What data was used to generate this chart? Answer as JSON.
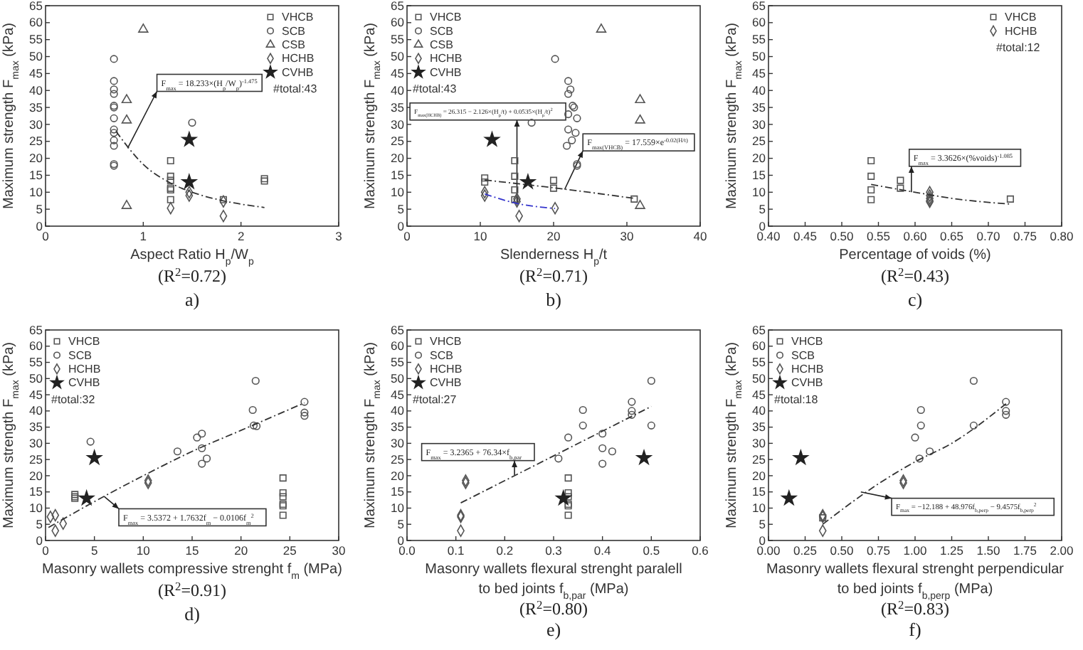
{
  "chart_data": [
    {
      "type": "scatter",
      "xlabel": "Aspect Ratio H$_{p}$/W$_{p}$",
      "ylabel": "Maximum strength F$_{max}$ (kPa)",
      "xlim": [
        0,
        3
      ],
      "xticks": [
        0,
        1,
        2,
        3
      ],
      "ylim": [
        0,
        65
      ],
      "yticks": [
        0,
        5,
        10,
        15,
        20,
        25,
        30,
        35,
        40,
        45,
        50,
        55,
        60,
        65
      ],
      "legend": "top right",
      "series": [
        {
          "name": "VHCB",
          "color": "#555555",
          "marker": "square",
          "x": [
            1.28,
            1.28,
            1.28,
            1.28,
            1.28,
            1.28,
            1.82,
            2.24,
            2.24
          ],
          "values": [
            19.3,
            14.7,
            13.5,
            11.2,
            10.7,
            7.8,
            7.8,
            14,
            13.3
          ]
        },
        {
          "name": "SCB",
          "color": "#555555",
          "marker": "circle",
          "x": [
            0.7,
            0.7,
            0.7,
            0.7,
            0.7,
            0.7,
            0.7,
            0.7,
            0.7,
            0.7,
            0.7,
            0.7,
            0.7,
            1.5
          ],
          "values": [
            49.3,
            42.8,
            40.3,
            39,
            35.5,
            35,
            31.8,
            28.5,
            27.5,
            25.3,
            23.7,
            18.3,
            17.8,
            30.5
          ]
        },
        {
          "name": "CSB",
          "color": "#555555",
          "marker": "triangle",
          "x": [
            1,
            0.83,
            0.83,
            0.83
          ],
          "values": [
            58,
            37.2,
            31.2,
            6
          ]
        },
        {
          "name": "HCHB",
          "color": "#555555",
          "marker": "diamond",
          "x": [
            1.28,
            1.47,
            1.47,
            1.82,
            1.82
          ],
          "values": [
            5.3,
            9,
            10,
            7.3,
            3
          ]
        },
        {
          "name": "CVHB",
          "color": "#222222",
          "marker": "star",
          "x": [
            1.47,
            1.47
          ],
          "values": [
            25.5,
            13
          ]
        },
        {
          "type": "line",
          "color": "#333333",
          "marker": "none",
          "line_style": "dashed",
          "x": [
            0.72,
            1,
            1.28,
            1.5,
            1.8,
            2.24
          ],
          "values": [
            28,
            18.2,
            12.7,
            10,
            7.6,
            5.5
          ]
        }
      ],
      "annotations": [
        {
          "text": "F$_{max}$ = 18.233×(H$_{p}$/W$_{p}$)$^{-1.475}$",
          "x": 0.84,
          "y": 23
        },
        "#total:43",
        "(R$^{2}$=0.72)",
        "a)"
      ]
    },
    {
      "type": "scatter",
      "xlabel": "Slenderness H$_{p}$/t",
      "ylabel": "Maximum strength F$_{max}$ (kPa)",
      "xlim": [
        0,
        40
      ],
      "xticks": [
        0,
        10,
        20,
        30,
        40
      ],
      "ylim": [
        0,
        65
      ],
      "yticks": [
        0,
        5,
        10,
        15,
        20,
        25,
        30,
        35,
        40,
        45,
        50,
        55,
        60,
        65
      ],
      "legend": "top left",
      "series": [
        {
          "name": "VHCB",
          "color": "#555555",
          "marker": "square",
          "x": [
            10.6,
            10.6,
            14.7,
            14.7,
            14.7,
            14.7,
            20,
            20,
            31
          ],
          "values": [
            13,
            14.2,
            19.3,
            14.7,
            10.7,
            7.8,
            13.5,
            11.2,
            8
          ]
        },
        {
          "name": "SCB",
          "color": "#555555",
          "marker": "circle",
          "x": [
            20.2,
            22,
            22.3,
            22,
            22.6,
            22.8,
            22,
            23.2,
            22,
            23,
            22.5,
            21.8,
            23.2,
            23.2,
            17
          ],
          "values": [
            49.3,
            42.8,
            40.3,
            39,
            35.5,
            35,
            33,
            31.8,
            28.5,
            27.5,
            25.3,
            23.7,
            18.3,
            17.8,
            30.5
          ]
        },
        {
          "name": "CSB",
          "color": "#555555",
          "marker": "triangle",
          "x": [
            26.5,
            31.8,
            31.8,
            31.8
          ],
          "values": [
            58,
            37.2,
            31.2,
            6
          ]
        },
        {
          "name": "HCHB",
          "color": "#555555",
          "marker": "diamond",
          "x": [
            10.6,
            10.6,
            15,
            15,
            15.3,
            20.2
          ],
          "values": [
            10,
            9,
            8,
            7.3,
            3,
            5.3
          ]
        },
        {
          "name": "CVHB",
          "color": "#222222",
          "marker": "star",
          "x": [
            11.6,
            16.5
          ],
          "values": [
            25.5,
            13
          ]
        },
        {
          "type": "line",
          "color": "#333333",
          "marker": "none",
          "line_style": "dashed",
          "x": [
            10.6,
            20,
            31
          ],
          "values": [
            13.6,
            11.3,
            8.2
          ]
        },
        {
          "type": "line",
          "color": "#3333cc",
          "marker": "none",
          "line_style": "dashed",
          "x": [
            10.6,
            15,
            20.2
          ],
          "values": [
            9.5,
            6.7,
            5.2
          ]
        }
      ],
      "annotations": [
        {
          "text": "F$_{max(HCHB)}$ = 26.315 − 2.126×(H$_{p}$/t) + 0.0535×(H$_{p}$/t)$^{2}$",
          "x": 15,
          "y": 6.7
        },
        {
          "text": "F$_{max(VHCB)}$ = 17.559×e$^{-0.02(H/t)}$",
          "x": 21.5,
          "y": 10.8
        },
        "#total:43",
        "(R$^{2}$=0.71)",
        "b)"
      ]
    },
    {
      "type": "scatter",
      "xlabel": "Percentage of voids (%)",
      "ylabel": "Maximum strength F$_{max}$ (kPa)",
      "xlim": [
        0.4,
        0.8
      ],
      "xticks": [
        {
          "value": 0.4,
          "label": "0.40"
        },
        0.45,
        {
          "value": 0.5,
          "label": "0.50"
        },
        0.55,
        {
          "value": 0.6,
          "label": "0.60"
        },
        0.65,
        {
          "value": 0.7,
          "label": "0.70"
        },
        0.75,
        {
          "value": 0.8,
          "label": "0.80"
        }
      ],
      "ylim": [
        0,
        65
      ],
      "yticks": [
        0,
        5,
        10,
        15,
        20,
        25,
        30,
        35,
        40,
        45,
        50,
        55,
        60,
        65
      ],
      "legend": "top right",
      "series": [
        {
          "name": "VHCB",
          "color": "#555555",
          "marker": "square",
          "x": [
            0.54,
            0.54,
            0.54,
            0.54,
            0.58,
            0.58,
            0.73
          ],
          "values": [
            19.3,
            14.7,
            10.7,
            7.8,
            13.5,
            11.2,
            8
          ]
        },
        {
          "name": "HCHB",
          "color": "#555555",
          "marker": "diamond",
          "x": [
            0.62,
            0.62,
            0.62,
            0.62,
            0.62
          ],
          "values": [
            10,
            9,
            8.2,
            7.5,
            7.2
          ]
        },
        {
          "type": "line",
          "color": "#333333",
          "marker": "none",
          "line_style": "dashed",
          "x": [
            0.54,
            0.6,
            0.65,
            0.73
          ],
          "values": [
            12.3,
            10,
            8.2,
            6.5
          ]
        }
      ],
      "annotations": [
        {
          "text": "F$_{max}$ = 3.3626×(%voids)$^{-1.085}$",
          "x": 0.595,
          "y": 10
        },
        "#total:12",
        "(R$^{2}$=0.43)",
        "c)"
      ]
    },
    {
      "type": "scatter",
      "xlabel": "Masonry wallets compressive strenght f$_{m}$ (MPa)",
      "ylabel": "Maximum strength F$_{max}$ (kPa)",
      "xlim": [
        0,
        30
      ],
      "xticks": [
        0,
        5,
        10,
        15,
        20,
        25,
        30
      ],
      "ylim": [
        0,
        65
      ],
      "yticks": [
        0,
        5,
        10,
        15,
        20,
        25,
        30,
        35,
        40,
        45,
        50,
        55,
        60,
        65
      ],
      "legend": "top left",
      "series": [
        {
          "name": "VHCB",
          "color": "#555555",
          "marker": "square",
          "x": [
            24.3,
            24.3,
            24.3,
            24.3,
            24.3,
            24.3,
            3,
            3,
            3
          ],
          "values": [
            19.3,
            14.7,
            13.5,
            11.2,
            10.7,
            7.8,
            14.2,
            13.5,
            13
          ]
        },
        {
          "name": "SCB",
          "color": "#555555",
          "marker": "circle",
          "x": [
            21.5,
            26.5,
            21.2,
            26.5,
            26.5,
            21.3,
            21.6,
            16,
            15.5,
            13.5,
            16,
            16.5,
            16,
            4.6
          ],
          "values": [
            49.3,
            42.8,
            40.3,
            39.5,
            38.5,
            35.5,
            35.3,
            33,
            31.8,
            27.5,
            28.5,
            25.3,
            23.7,
            30.5
          ]
        },
        {
          "name": "HCHB",
          "color": "#555555",
          "marker": "diamond",
          "x": [
            10.5,
            10.5,
            1,
            0.5,
            1.8,
            1
          ],
          "values": [
            18.5,
            17.8,
            7.8,
            7.3,
            5.2,
            3
          ]
        },
        {
          "name": "CVHB",
          "color": "#222222",
          "marker": "star",
          "x": [
            5,
            4.2
          ],
          "values": [
            25.5,
            13
          ]
        },
        {
          "type": "line",
          "color": "#333333",
          "marker": "none",
          "line_style": "dashed",
          "x": [
            0.3,
            5,
            10,
            15,
            20,
            26.5
          ],
          "values": [
            4,
            12,
            20,
            27.5,
            34,
            42.5
          ]
        }
      ],
      "annotations": [
        {
          "text": "F$_{max}$ = 3.5372 + 1.7632f$_{m}$ − 0.0106f$_{m}$$^{2}$",
          "x": 6,
          "y": 13.6
        },
        "#total:32",
        "(R$^{2}$=0.91)",
        "d)"
      ]
    },
    {
      "type": "scatter",
      "xlabel": "Masonry wallets flexural strenght paralell\nto bed joints f$_{b,par}$  (MPa)",
      "ylabel": "Maximum strength F$_{max}$ (kPa)",
      "xlim": [
        0,
        0.6
      ],
      "xticks": [
        {
          "value": 0,
          "label": "0.0"
        },
        0.1,
        0.2,
        0.3,
        0.4,
        0.5,
        0.6
      ],
      "ylim": [
        0,
        65
      ],
      "yticks": [
        0,
        5,
        10,
        15,
        20,
        25,
        30,
        35,
        40,
        45,
        50,
        55,
        60,
        65
      ],
      "legend": "top left",
      "series": [
        {
          "name": "VHCB",
          "color": "#555555",
          "marker": "square",
          "x": [
            0.33,
            0.33,
            0.33,
            0.33,
            0.33,
            0.33
          ],
          "values": [
            19.3,
            14.7,
            13.5,
            11.2,
            10.7,
            7.8
          ]
        },
        {
          "name": "SCB",
          "color": "#555555",
          "marker": "circle",
          "x": [
            0.5,
            0.46,
            0.36,
            0.46,
            0.46,
            0.36,
            0.5,
            0.4,
            0.33,
            0.4,
            0.42,
            0.31,
            0.4
          ],
          "values": [
            49.3,
            42.8,
            40.3,
            40,
            38.8,
            35.5,
            35.5,
            33,
            31.8,
            28.5,
            27.5,
            25.3,
            23.7
          ]
        },
        {
          "name": "HCHB",
          "color": "#555555",
          "marker": "diamond",
          "x": [
            0.12,
            0.12,
            0.11,
            0.11,
            0.11
          ],
          "values": [
            18.5,
            17.8,
            7.8,
            7.3,
            3
          ]
        },
        {
          "name": "CVHB",
          "color": "#222222",
          "marker": "star",
          "x": [
            0.32,
            0.485
          ],
          "values": [
            13,
            25.5
          ]
        },
        {
          "type": "line",
          "color": "#333333",
          "marker": "none",
          "line_style": "dashed",
          "x": [
            0.11,
            0.5
          ],
          "values": [
            11.6,
            41.4
          ]
        }
      ],
      "annotations": [
        {
          "text": "F$_{max}$ = 3.2365 + 76.34×f$_{b,par}$",
          "x": 0.22,
          "y": 20.2
        },
        "#total:27",
        "(R$^{2}$=0.80)",
        "e)"
      ]
    },
    {
      "type": "scatter",
      "xlabel": "Masonry wallets flexural strenght perpendicular\nto bed joints f$_{b,perp}$  (MPa)",
      "ylabel": "Maximum strength F$_{max}$ (kPa)",
      "xlim": [
        0,
        2
      ],
      "xticks": [
        {
          "value": 0,
          "label": "0.00"
        },
        0.25,
        {
          "value": 0.5,
          "label": "0.50"
        },
        0.75,
        {
          "value": 1,
          "label": "1.00"
        },
        1.25,
        {
          "value": 1.5,
          "label": "1.50"
        },
        1.75,
        {
          "value": 2,
          "label": "2.00"
        }
      ],
      "ylim": [
        0,
        65
      ],
      "yticks": [
        0,
        5,
        10,
        15,
        20,
        25,
        30,
        35,
        40,
        45,
        50,
        55,
        60,
        65
      ],
      "legend": "top left",
      "series": [
        {
          "name": "VHCB",
          "color": "#555555",
          "marker": "square",
          "x": [
            0.37
          ],
          "values": [
            7
          ]
        },
        {
          "name": "SCB",
          "color": "#555555",
          "marker": "circle",
          "x": [
            1.4,
            1.62,
            1.62,
            1.62,
            1.04,
            1.04,
            1.4,
            1,
            1.1,
            1.03
          ],
          "values": [
            49.3,
            42.8,
            40,
            38.8,
            40.3,
            35.5,
            35.5,
            31.8,
            27.5,
            25.3
          ]
        },
        {
          "name": "HCHB",
          "color": "#555555",
          "marker": "diamond",
          "x": [
            0.92,
            0.92,
            0.37,
            0.37,
            0.37
          ],
          "values": [
            18.5,
            17.8,
            7.8,
            7.3,
            3
          ]
        },
        {
          "name": "CVHB",
          "color": "#222222",
          "marker": "star",
          "x": [
            0.14,
            0.22
          ],
          "values": [
            13,
            25.5
          ]
        },
        {
          "type": "line",
          "color": "#333333",
          "marker": "none",
          "line_style": "dashed",
          "x": [
            0.37,
            0.75,
            1,
            1.25,
            1.62
          ],
          "values": [
            5,
            17.5,
            24.3,
            30,
            42.2
          ]
        }
      ],
      "annotations": [
        {
          "text": "F$_{max}$ = −12.188 + 48.976f$_{b,perp}$ − 9.4575f$_{b,perp}$$^{2}$",
          "x": 0.63,
          "y": 15
        },
        "#total:18",
        "(R$^{2}$=0.83)",
        "f)"
      ]
    }
  ]
}
